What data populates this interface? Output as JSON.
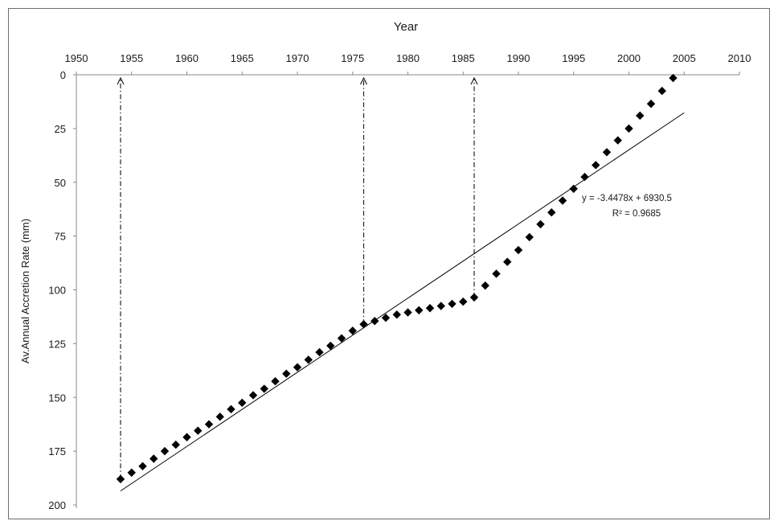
{
  "chart_data": {
    "type": "scatter",
    "title": "",
    "xlabel": "Year",
    "ylabel": "Av.Annual Accretion Rate (mm)",
    "xlim": [
      1950,
      2010
    ],
    "ylim": [
      0,
      200
    ],
    "y_inverted": true,
    "x_axis_position": "top",
    "x_ticks": [
      "1950",
      "1955",
      "1960",
      "1965",
      "1970",
      "1975",
      "1980",
      "1985",
      "1990",
      "1995",
      "2000",
      "2005",
      "2010"
    ],
    "y_ticks": [
      "0",
      "25",
      "50",
      "75",
      "100",
      "125",
      "150",
      "175",
      "200"
    ],
    "grid": false,
    "series": [
      {
        "marker": "diamond",
        "color": "#000000",
        "x": [
          1954,
          1955,
          1956,
          1957,
          1958,
          1959,
          1960,
          1961,
          1962,
          1963,
          1964,
          1965,
          1966,
          1967,
          1968,
          1969,
          1970,
          1971,
          1972,
          1973,
          1974,
          1975,
          1976,
          1977,
          1978,
          1979,
          1980,
          1981,
          1982,
          1983,
          1984,
          1985,
          1986,
          1987,
          1988,
          1989,
          1990,
          1991,
          1992,
          1993,
          1994,
          1995,
          1996,
          1997,
          1998,
          1999,
          2000,
          2001,
          2002,
          2003,
          2004
        ],
        "y": [
          188,
          185,
          182,
          178.5,
          175,
          172,
          168.5,
          165.5,
          162.5,
          159,
          155.5,
          152.5,
          149,
          146,
          142.5,
          139,
          136,
          132.5,
          129,
          126,
          122.5,
          119,
          116,
          114.5,
          113,
          111.5,
          110.5,
          109.5,
          108.5,
          107.5,
          106.5,
          105.5,
          103.5,
          98,
          92.5,
          87,
          81.5,
          75.5,
          69.5,
          64,
          58.5,
          53,
          47.5,
          42,
          36,
          30.5,
          25,
          19,
          13.5,
          7.5,
          1.5
        ]
      }
    ],
    "trendline": {
      "type": "linear",
      "color": "#000000",
      "x_range": [
        1954,
        2005
      ],
      "slope": -3.4478,
      "intercept": 6930.5,
      "equation_label": "y = -3.4478x + 6930.5",
      "r2_label": "R² = 0.9685"
    },
    "reference_years": [
      1954,
      1976,
      1986
    ]
  }
}
